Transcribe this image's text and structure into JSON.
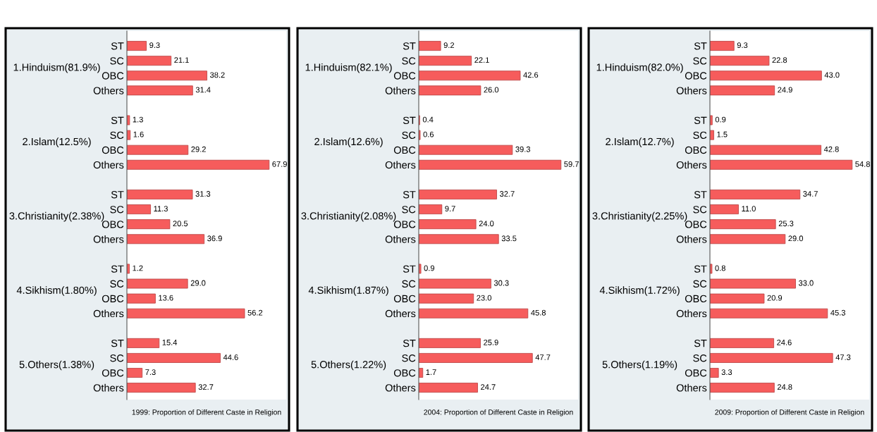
{
  "chart_data": [
    {
      "type": "bar",
      "orientation": "horizontal",
      "xlabel": "1999: Proportion of Different Caste in Religion",
      "color": "#f65c5c",
      "tick_labels": "y",
      "categories": [
        "ST",
        "SC",
        "OBC",
        "Others",
        null,
        "ST",
        "SC",
        "OBC",
        "Others",
        null,
        "ST",
        "SC",
        "OBC",
        "Others",
        null,
        "ST",
        "SC",
        "OBC",
        "Others",
        null,
        "ST",
        "SC",
        "OBC",
        "Others"
      ],
      "values": [
        9.3,
        21.1,
        38.2,
        31.4,
        null,
        1.3,
        1.6,
        29.2,
        67.9,
        null,
        31.3,
        11.3,
        20.5,
        36.9,
        null,
        1.2,
        29.0,
        13.6,
        56.2,
        null,
        15.4,
        44.6,
        7.3,
        32.7
      ],
      "value_labels": [
        "9.3",
        "21.1",
        "38.2",
        "31.4",
        null,
        "1.3",
        "1.6",
        "29.2",
        "67.9",
        null,
        "31.3",
        "11.3",
        "20.5",
        "36.9",
        null,
        "1.2",
        "29.0",
        "13.6",
        "56.2",
        null,
        "15.4",
        "44.6",
        "7.3",
        "32.7"
      ],
      "annotations": [
        "1.Hinduism(81.9%)",
        "2.Islam(12.5%)",
        "3.Christianity(2.38%)",
        "4.Sikhism(1.80%)",
        "5.Others(1.38%)"
      ]
    },
    {
      "type": "bar",
      "orientation": "horizontal",
      "xlabel": "2004: Proportion of Different Caste in Religion",
      "color": "#f65c5c",
      "tick_labels": "y",
      "categories": [
        "ST",
        "SC",
        "OBC",
        "Others",
        null,
        "ST",
        "SC",
        "OBC",
        "Others",
        null,
        "ST",
        "SC",
        "OBC",
        "Others",
        null,
        "ST",
        "SC",
        "OBC",
        "Others",
        null,
        "ST",
        "SC",
        "OBC",
        "Others"
      ],
      "values": [
        9.2,
        22.1,
        42.6,
        26.0,
        null,
        0.4,
        0.6,
        39.3,
        59.7,
        null,
        32.7,
        9.7,
        24.0,
        33.5,
        null,
        0.9,
        30.3,
        23.0,
        45.8,
        null,
        25.9,
        47.7,
        1.7,
        24.7
      ],
      "value_labels": [
        "9.2",
        "22.1",
        "42.6",
        "26.0",
        null,
        "0.4",
        "0.6",
        "39.3",
        "59.7",
        null,
        "32.7",
        "9.7",
        "24.0",
        "33.5",
        null,
        "0.9",
        "30.3",
        "23.0",
        "45.8",
        null,
        "25.9",
        "47.7",
        "1.7",
        "24.7"
      ],
      "annotations": [
        "1.Hinduism(82.1%)",
        "2.Islam(12.6%)",
        "3.Christianity(2.08%)",
        "4.Sikhism(1.87%)",
        "5.Others(1.22%)"
      ]
    },
    {
      "type": "bar",
      "orientation": "horizontal",
      "xlabel": "2009: Proportion of Different Caste in Religion",
      "color": "#f65c5c",
      "tick_labels": "y",
      "categories": [
        "ST",
        "SC",
        "OBC",
        "Others",
        null,
        "ST",
        "SC",
        "OBC",
        "Others",
        null,
        "ST",
        "SC",
        "OBC",
        "Others",
        null,
        "ST",
        "SC",
        "OBC",
        "Others",
        null,
        "ST",
        "SC",
        "OBC",
        "Others"
      ],
      "values": [
        9.3,
        22.8,
        43.0,
        24.9,
        null,
        0.9,
        1.5,
        42.8,
        54.8,
        null,
        34.7,
        11.0,
        25.3,
        29.0,
        null,
        0.8,
        33.0,
        20.9,
        45.3,
        null,
        24.6,
        47.3,
        3.3,
        24.8
      ],
      "value_labels": [
        "9.3",
        "22.8",
        "43.0",
        "24.9",
        null,
        "0.9",
        "1.5",
        "42.8",
        "54.8",
        null,
        "34.7",
        "11.0",
        "25.3",
        "29.0",
        null,
        "0.8",
        "33.0",
        "20.9",
        "45.3",
        null,
        "24.6",
        "47.3",
        "3.3",
        "24.8"
      ],
      "annotations": [
        "1.Hinduism(82.0%)",
        "2.Islam(12.7%)",
        "3.Christianity(2.25%)",
        "4.Sikhism(1.72%)",
        "5.Others(1.19%)"
      ]
    }
  ]
}
